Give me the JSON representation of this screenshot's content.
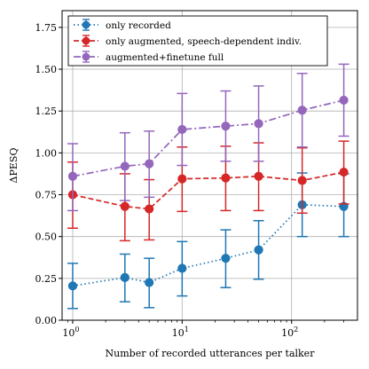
{
  "chart_data": {
    "type": "line",
    "xlabel": "Number of recorded utterances per talker",
    "ylabel": "ΔPESQ",
    "xscale": "log",
    "xlim": [
      0.8,
      400
    ],
    "ylim": [
      0,
      1.85
    ],
    "grid": true,
    "legend_position": "top-left",
    "x_ticks": [
      {
        "value": 1,
        "base": "10",
        "exp": "0"
      },
      {
        "value": 10,
        "base": "10",
        "exp": "1"
      },
      {
        "value": 100,
        "base": "10",
        "exp": "2"
      }
    ],
    "y_ticks": [
      {
        "value": 0,
        "label": "0.00"
      },
      {
        "value": 0.25,
        "label": "0.25"
      },
      {
        "value": 0.5,
        "label": "0.50"
      },
      {
        "value": 0.75,
        "label": "0.75"
      },
      {
        "value": 1.0,
        "label": "1.00"
      },
      {
        "value": 1.25,
        "label": "1.25"
      },
      {
        "value": 1.5,
        "label": "1.50"
      },
      {
        "value": 1.75,
        "label": "1.75"
      }
    ],
    "series": [
      {
        "name": "only recorded",
        "color": "#1f77b4",
        "linestyle": "dotted",
        "x": [
          1,
          3,
          5,
          10,
          25,
          50,
          125,
          300
        ],
        "y": [
          0.205,
          0.255,
          0.225,
          0.31,
          0.37,
          0.42,
          0.69,
          0.68
        ],
        "err_low": [
          0.07,
          0.11,
          0.075,
          0.145,
          0.195,
          0.245,
          0.5,
          0.5
        ],
        "err_high": [
          0.34,
          0.395,
          0.37,
          0.47,
          0.54,
          0.595,
          0.88,
          0.875
        ]
      },
      {
        "name": "only augmented, speech-dependent indiv.",
        "color": "#d62728",
        "linestyle": "dashed",
        "x": [
          1,
          3,
          5,
          10,
          25,
          50,
          125,
          300
        ],
        "y": [
          0.75,
          0.68,
          0.665,
          0.845,
          0.85,
          0.86,
          0.835,
          0.885
        ],
        "err_low": [
          0.55,
          0.475,
          0.48,
          0.65,
          0.655,
          0.655,
          0.64,
          0.695
        ],
        "err_high": [
          0.945,
          0.875,
          0.84,
          1.035,
          1.04,
          1.06,
          1.03,
          1.07
        ]
      },
      {
        "name": "augmented+finetune full",
        "color": "#9467bd",
        "linestyle": "dashdot",
        "x": [
          1,
          3,
          5,
          10,
          25,
          50,
          125,
          300
        ],
        "y": [
          0.86,
          0.92,
          0.935,
          1.14,
          1.16,
          1.175,
          1.255,
          1.315
        ],
        "err_low": [
          0.655,
          0.715,
          0.735,
          0.925,
          0.95,
          0.95,
          1.035,
          1.1
        ],
        "err_high": [
          1.055,
          1.12,
          1.13,
          1.355,
          1.37,
          1.4,
          1.475,
          1.53
        ]
      }
    ]
  }
}
